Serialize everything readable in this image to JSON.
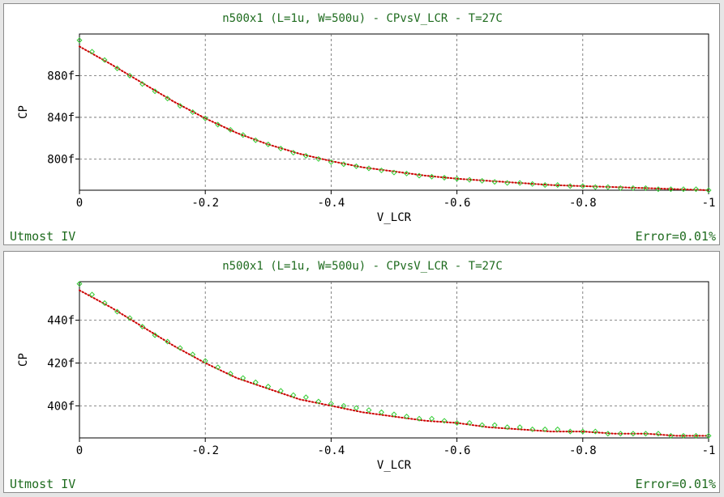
{
  "panels": [
    {
      "footer_left": "Utmost IV",
      "footer_right": "Error=0.01%",
      "chart_data": {
        "type": "scatter",
        "title": "n500x1 (L=1u, W=500u) - CPvsV_LCR - T=27C",
        "xlabel": "V_LCR",
        "ylabel": "CP",
        "xlim": [
          0,
          -1
        ],
        "ylim": [
          770,
          920
        ],
        "x_ticks": [
          0,
          -0.2,
          -0.4,
          -0.6,
          -0.8,
          -1
        ],
        "x_tick_labels": [
          "0",
          "-0.2",
          "-0.4",
          "-0.6",
          "-0.8",
          "-1"
        ],
        "y_ticks": [
          800,
          840,
          880
        ],
        "y_tick_labels": [
          "800f",
          "840f",
          "880f"
        ],
        "grid": true,
        "series": [
          {
            "kind": "measured",
            "marker": "diamond",
            "color": "#33cc33",
            "x": [
              0,
              -0.02,
              -0.04,
              -0.06,
              -0.08,
              -0.1,
              -0.12,
              -0.14,
              -0.16,
              -0.18,
              -0.2,
              -0.22,
              -0.24,
              -0.26,
              -0.28,
              -0.3,
              -0.32,
              -0.34,
              -0.36,
              -0.38,
              -0.4,
              -0.42,
              -0.44,
              -0.46,
              -0.48,
              -0.5,
              -0.52,
              -0.54,
              -0.56,
              -0.58,
              -0.6,
              -0.62,
              -0.64,
              -0.66,
              -0.68,
              -0.7,
              -0.72,
              -0.74,
              -0.76,
              -0.78,
              -0.8,
              -0.82,
              -0.84,
              -0.86,
              -0.88,
              -0.9,
              -0.92,
              -0.94,
              -0.96,
              -0.98,
              -1
            ],
            "y": [
              914,
              903,
              895,
              887,
              880,
              872,
              865,
              858,
              851,
              845,
              839,
              833,
              828,
              823,
              818,
              814,
              810,
              806,
              803,
              800,
              797,
              795,
              793,
              791,
              789,
              787,
              786,
              784,
              783,
              782,
              781,
              780,
              779,
              778,
              777,
              777,
              776,
              775,
              775,
              774,
              774,
              773,
              773,
              772,
              772,
              772,
              771,
              771,
              771,
              771,
              770
            ]
          },
          {
            "kind": "simulated",
            "line": "dotted",
            "color": "#cc0000",
            "x": [
              0,
              -0.05,
              -0.1,
              -0.15,
              -0.2,
              -0.25,
              -0.3,
              -0.35,
              -0.4,
              -0.45,
              -0.5,
              -0.55,
              -0.6,
              -0.65,
              -0.7,
              -0.75,
              -0.8,
              -0.85,
              -0.9,
              -0.95,
              -1
            ],
            "y": [
              908,
              891,
              873,
              855,
              839,
              825,
              814,
              805,
              798,
              792,
              788,
              784,
              781,
              779,
              777,
              775,
              774,
              773,
              772,
              771,
              770
            ]
          }
        ]
      }
    },
    {
      "footer_left": "Utmost IV",
      "footer_right": "Error=0.01%",
      "chart_data": {
        "type": "scatter",
        "title": "n500x1 (L=1u, W=500u) - CPvsV_LCR - T=27C",
        "xlabel": "V_LCR",
        "ylabel": "CP",
        "xlim": [
          0,
          -1
        ],
        "ylim": [
          385,
          458
        ],
        "x_ticks": [
          0,
          -0.2,
          -0.4,
          -0.6,
          -0.8,
          -1
        ],
        "x_tick_labels": [
          "0",
          "-0.2",
          "-0.4",
          "-0.6",
          "-0.8",
          "-1"
        ],
        "y_ticks": [
          400,
          420,
          440
        ],
        "y_tick_labels": [
          "400f",
          "420f",
          "440f"
        ],
        "grid": true,
        "series": [
          {
            "kind": "measured",
            "marker": "diamond",
            "color": "#33cc33",
            "x": [
              0,
              -0.02,
              -0.04,
              -0.06,
              -0.08,
              -0.1,
              -0.12,
              -0.14,
              -0.16,
              -0.18,
              -0.2,
              -0.22,
              -0.24,
              -0.26,
              -0.28,
              -0.3,
              -0.32,
              -0.34,
              -0.36,
              -0.38,
              -0.4,
              -0.42,
              -0.44,
              -0.46,
              -0.48,
              -0.5,
              -0.52,
              -0.54,
              -0.56,
              -0.58,
              -0.6,
              -0.62,
              -0.64,
              -0.66,
              -0.68,
              -0.7,
              -0.72,
              -0.74,
              -0.76,
              -0.78,
              -0.8,
              -0.82,
              -0.84,
              -0.86,
              -0.88,
              -0.9,
              -0.92,
              -0.94,
              -0.96,
              -0.98,
              -1
            ],
            "y": [
              457,
              452,
              448,
              444,
              441,
              437,
              433,
              430,
              427,
              424,
              421,
              418,
              415,
              413,
              411,
              409,
              407,
              405,
              404,
              402,
              401,
              400,
              399,
              398,
              397,
              396,
              395,
              394,
              394,
              393,
              392,
              392,
              391,
              391,
              390,
              390,
              389,
              389,
              389,
              388,
              388,
              388,
              387,
              387,
              387,
              387,
              387,
              386,
              386,
              386,
              386
            ]
          },
          {
            "kind": "simulated",
            "line": "dotted",
            "color": "#cc0000",
            "x": [
              0,
              -0.05,
              -0.1,
              -0.15,
              -0.2,
              -0.25,
              -0.3,
              -0.35,
              -0.4,
              -0.45,
              -0.5,
              -0.55,
              -0.6,
              -0.65,
              -0.7,
              -0.75,
              -0.8,
              -0.85,
              -0.9,
              -0.95,
              -1
            ],
            "y": [
              454,
              446,
              437,
              428,
              420,
              413,
              408,
              403,
              400,
              397,
              395,
              393,
              392,
              390,
              389,
              388,
              388,
              387,
              387,
              386,
              386
            ]
          }
        ]
      }
    }
  ]
}
